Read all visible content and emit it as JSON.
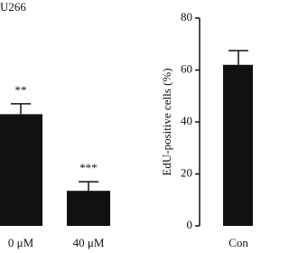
{
  "chart_data": [
    {
      "type": "bar",
      "title": "U266",
      "categories": [
        "0 μM",
        "40 μM"
      ],
      "values": [
        43,
        13.5
      ],
      "errors": [
        4,
        3.5
      ],
      "annotations": [
        "**",
        "***"
      ],
      "color": "#111111",
      "ylim": [
        0,
        80
      ]
    },
    {
      "type": "bar",
      "y_label": "EdU-positive cells (%)",
      "categories": [
        "Con"
      ],
      "values": [
        62
      ],
      "errors": [
        5.5
      ],
      "color": "#111111",
      "ylim": [
        0,
        80
      ],
      "yticks": [
        0,
        20,
        40,
        60,
        80
      ]
    }
  ]
}
